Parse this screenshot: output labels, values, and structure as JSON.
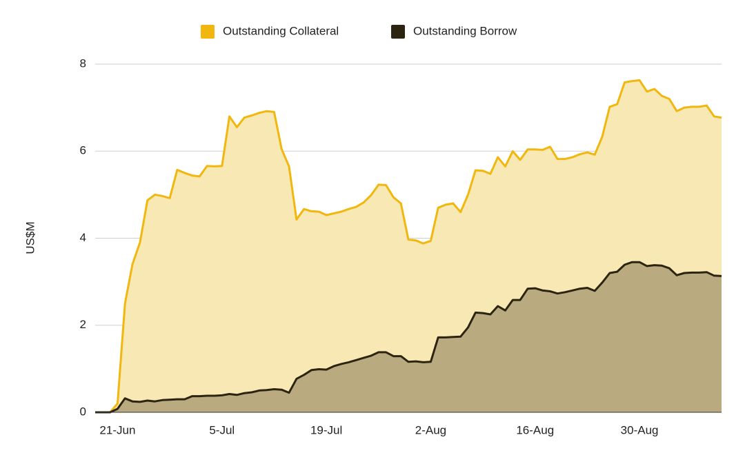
{
  "chart_data": {
    "type": "area",
    "y_axis_label": "US$M",
    "categories": [
      null,
      null,
      null,
      "21-Jun",
      null,
      null,
      null,
      null,
      null,
      null,
      null,
      null,
      null,
      null,
      null,
      null,
      null,
      "5-Jul",
      null,
      null,
      null,
      null,
      null,
      null,
      null,
      null,
      null,
      null,
      null,
      null,
      null,
      "19-Jul",
      null,
      null,
      null,
      null,
      null,
      null,
      null,
      null,
      null,
      null,
      null,
      null,
      null,
      "2-Aug",
      null,
      null,
      null,
      null,
      null,
      null,
      null,
      null,
      null,
      null,
      null,
      null,
      null,
      "16-Aug",
      null,
      null,
      null,
      null,
      null,
      null,
      null,
      null,
      null,
      null,
      null,
      null,
      null,
      "30-Aug",
      null,
      null,
      null,
      null,
      null,
      null,
      null,
      null,
      null,
      null,
      null
    ],
    "series": [
      {
        "name": "Outstanding Collateral",
        "color": "#f1b70f",
        "fill": "#f8e8b3",
        "values": [
          0,
          0,
          0,
          0.2,
          2.5,
          3.4,
          3.9,
          4.87,
          5.0,
          4.97,
          4.92,
          5.57,
          5.5,
          5.44,
          5.42,
          5.66,
          5.65,
          5.66,
          6.8,
          6.55,
          6.77,
          6.82,
          6.88,
          6.92,
          6.9,
          6.05,
          5.65,
          4.43,
          4.67,
          4.62,
          4.61,
          4.53,
          4.57,
          4.61,
          4.67,
          4.72,
          4.82,
          4.99,
          5.23,
          5.22,
          4.94,
          4.8,
          3.97,
          3.95,
          3.88,
          3.94,
          4.7,
          4.77,
          4.8,
          4.6,
          5.0,
          5.56,
          5.55,
          5.48,
          5.86,
          5.65,
          6.0,
          5.8,
          6.04,
          6.04,
          6.03,
          6.1,
          5.82,
          5.82,
          5.86,
          5.93,
          5.97,
          5.92,
          6.33,
          7.02,
          7.08,
          7.58,
          7.61,
          7.63,
          7.37,
          7.43,
          7.27,
          7.2,
          6.92,
          7.0,
          7.02,
          7.02,
          7.05,
          6.8,
          6.77
        ]
      },
      {
        "name": "Outstanding Borrow",
        "color": "#2b2410",
        "fill": "#b9aa80",
        "values": [
          0,
          0,
          0,
          0.08,
          0.32,
          0.25,
          0.24,
          0.27,
          0.25,
          0.28,
          0.29,
          0.3,
          0.3,
          0.37,
          0.37,
          0.38,
          0.38,
          0.39,
          0.42,
          0.4,
          0.44,
          0.46,
          0.5,
          0.51,
          0.53,
          0.52,
          0.45,
          0.77,
          0.86,
          0.97,
          0.99,
          0.98,
          1.06,
          1.11,
          1.15,
          1.2,
          1.25,
          1.3,
          1.38,
          1.38,
          1.29,
          1.29,
          1.16,
          1.17,
          1.15,
          1.16,
          1.72,
          1.72,
          1.73,
          1.74,
          1.95,
          2.29,
          2.28,
          2.25,
          2.44,
          2.34,
          2.58,
          2.58,
          2.84,
          2.85,
          2.8,
          2.78,
          2.73,
          2.76,
          2.8,
          2.84,
          2.86,
          2.79,
          2.98,
          3.2,
          3.23,
          3.39,
          3.45,
          3.45,
          3.36,
          3.38,
          3.37,
          3.31,
          3.15,
          3.2,
          3.21,
          3.21,
          3.22,
          3.14,
          3.13
        ]
      }
    ],
    "ylim": [
      0,
      8
    ],
    "yticks": [
      0,
      2,
      4,
      6,
      8
    ],
    "grid": true,
    "legend": "top"
  }
}
